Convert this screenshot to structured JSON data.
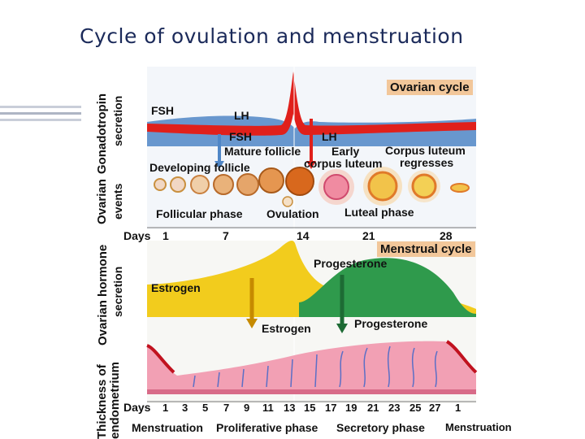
{
  "slide": {
    "title": "Cycle of ovulation and menstruation"
  },
  "panels": {
    "gonadotropin": {
      "label_line1": "Gonadotropin",
      "label_line2": "secretion",
      "tag": "Ovarian cycle",
      "fsh": "FSH",
      "lh": "LH",
      "fsh_arrow": "FSH",
      "lh_arrow": "LH"
    },
    "ovarian_events": {
      "label_line1": "Ovarian",
      "label_line2": "events",
      "developing_follicle": "Developing follicle",
      "mature_follicle": "Mature follicle",
      "early_corpus": "Early",
      "early_corpus_2": "corpus luteum",
      "corpus_regresses": "Corpus luteum",
      "corpus_regresses_2": "regresses",
      "follicular_phase": "Follicular phase",
      "ovulation": "Ovulation",
      "luteal_phase": "Luteal phase"
    },
    "days_top": {
      "label": "Days",
      "ticks": [
        "1",
        "7",
        "14",
        "21",
        "28"
      ]
    },
    "hormone": {
      "label_line1": "Ovarian hormone",
      "label_line2": "secretion",
      "tag": "Menstrual cycle",
      "estrogen": "Estrogen",
      "progesterone": "Progesterone",
      "estrogen_arrow": "Estrogen",
      "progesterone_arrow": "Progesterone"
    },
    "endometrium": {
      "label_line1": "Thickness of",
      "label_line2": "endometrium"
    },
    "days_bottom": {
      "label": "Days",
      "ticks": [
        "1",
        "3",
        "5",
        "7",
        "9",
        "11",
        "13",
        "15",
        "17",
        "19",
        "21",
        "23",
        "25",
        "27",
        "1"
      ]
    },
    "phases": {
      "menstruation": "Menstruation",
      "proliferative": "Proliferative phase",
      "secretory": "Secretory phase",
      "menstruation_end": "Menstruation"
    }
  },
  "colors": {
    "title": "#1b2a5a",
    "lh_curve": "#e0201b",
    "fsh_band": "#4f86c6",
    "estrogen": "#f2cc1d",
    "progesterone": "#2f9a4c",
    "endometrium": "#f2a0b4",
    "tag": "#f2c79a"
  }
}
